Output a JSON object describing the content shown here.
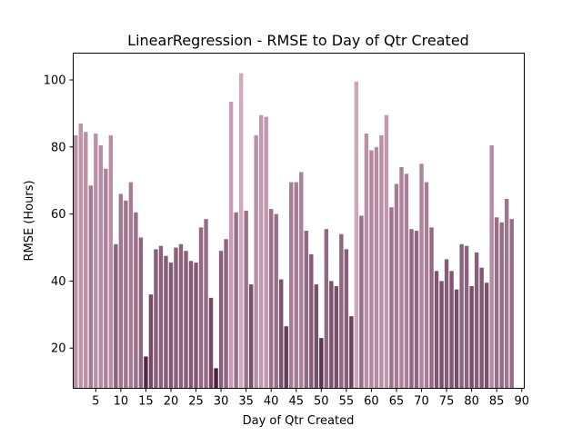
{
  "chart_data": {
    "type": "bar",
    "title": "LinearRegression - RMSE to Day of Qtr Created",
    "xlabel": "Day of Qtr Created",
    "ylabel": "RMSE (Hours)",
    "xlim": [
      0,
      90
    ],
    "ylim": [
      8,
      108
    ],
    "xticks": [
      5,
      10,
      15,
      20,
      25,
      30,
      35,
      40,
      45,
      50,
      55,
      60,
      65,
      70,
      75,
      80,
      85,
      90
    ],
    "yticks": [
      20,
      40,
      60,
      80,
      100
    ],
    "grid": false,
    "color_scale": {
      "low": "#4b2140",
      "high": "#d3a8bd"
    },
    "x": [
      1,
      2,
      3,
      4,
      5,
      6,
      7,
      8,
      9,
      10,
      11,
      12,
      13,
      14,
      15,
      16,
      17,
      18,
      19,
      20,
      21,
      22,
      23,
      24,
      25,
      26,
      27,
      28,
      29,
      30,
      31,
      32,
      33,
      34,
      35,
      36,
      37,
      38,
      39,
      40,
      41,
      42,
      43,
      44,
      45,
      46,
      47,
      48,
      49,
      50,
      51,
      52,
      53,
      54,
      55,
      56,
      57,
      58,
      59,
      60,
      61,
      62,
      63,
      64,
      65,
      66,
      67,
      68,
      69,
      70,
      71,
      72,
      73,
      74,
      75,
      76,
      77,
      78,
      79,
      80,
      81,
      82,
      83,
      84,
      85,
      86,
      87,
      88
    ],
    "values": [
      83.5,
      87,
      84.5,
      68.5,
      84,
      80.5,
      73.5,
      83.5,
      51,
      66,
      64,
      69.5,
      60.5,
      53,
      17.5,
      36,
      49.5,
      50.5,
      47.5,
      45.5,
      50,
      51,
      49,
      46,
      45.5,
      56,
      58.5,
      35,
      14,
      49,
      52.5,
      93.5,
      60.5,
      102,
      61,
      39,
      83.5,
      89.5,
      89,
      61.5,
      60,
      40.5,
      26.5,
      69.5,
      69.5,
      72.5,
      55,
      48,
      39,
      23,
      55.5,
      40,
      38.5,
      54,
      49.5,
      29.5,
      99.5,
      59.5,
      84,
      79,
      80,
      83.5,
      89.5,
      62,
      69,
      74,
      72,
      55.5,
      55,
      75,
      69.5,
      56,
      43,
      40,
      46.5,
      43,
      37.5,
      51,
      50.5,
      38.5,
      48.5,
      44,
      39.5,
      80.5,
      59,
      57.5,
      64.5,
      58.5
    ]
  }
}
